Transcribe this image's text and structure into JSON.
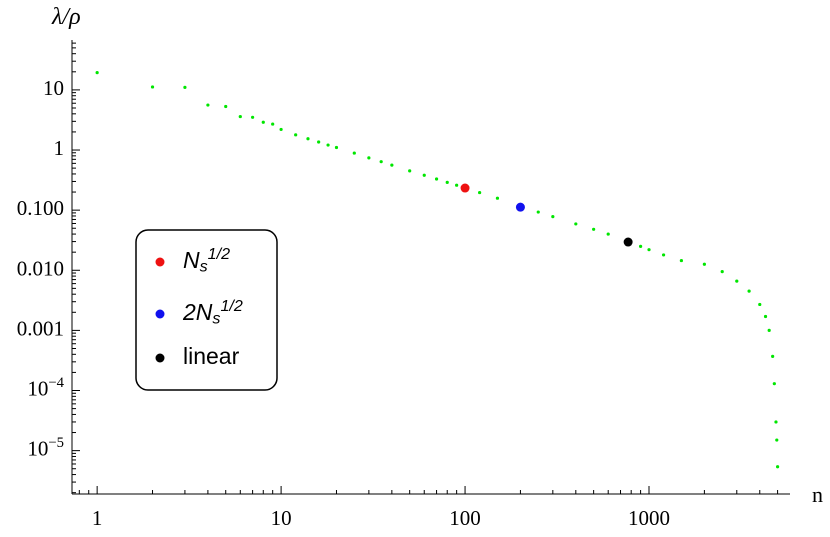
{
  "chart_data": {
    "type": "scatter",
    "x_label": "n",
    "y_label": "λ/ρ",
    "log_x": true,
    "log_y": true,
    "xlim": [
      0.73,
      5840
    ],
    "ylim": [
      1.9e-06,
      67.6
    ],
    "xticks": [
      1,
      10,
      100,
      1000
    ],
    "yticks": [
      10,
      1,
      {
        "value": 0.1,
        "label": "0.100"
      },
      {
        "value": 0.01,
        "label": "0.010"
      },
      {
        "value": 0.001,
        "label": "0.001"
      },
      {
        "value": 0.0001,
        "label": "10^{−4}"
      },
      {
        "value": 1e-05,
        "label": "10^{−5}"
      }
    ],
    "legend_position": "center-left",
    "series": [
      {
        "color": "#00e600",
        "x": [
          1,
          2,
          3,
          4,
          5,
          6,
          7,
          8,
          9,
          10,
          12,
          14,
          16,
          18,
          20,
          25,
          30,
          35,
          40,
          50,
          60,
          70,
          80,
          90,
          100,
          120,
          150,
          200,
          250,
          300,
          400,
          500,
          600,
          770,
          900,
          1000,
          1200,
          1500,
          2000,
          2500,
          3000,
          3500,
          4000,
          4300,
          4500,
          4700,
          4800,
          4900,
          4950,
          5000
        ],
        "values": [
          19.4,
          11.2,
          11,
          5.6,
          5.3,
          3.6,
          3.5,
          2.9,
          2.7,
          2.2,
          1.79,
          1.54,
          1.36,
          1.21,
          1.1,
          0.89,
          0.74,
          0.64,
          0.56,
          0.45,
          0.38,
          0.33,
          0.29,
          0.26,
          0.233,
          0.196,
          0.158,
          0.115,
          0.093,
          0.078,
          0.059,
          0.048,
          0.04,
          0.0295,
          0.025,
          0.022,
          0.018,
          0.0145,
          0.0126,
          0.0095,
          0.0066,
          0.0045,
          0.0027,
          0.0017,
          0.001,
          0.00037,
          0.00013,
          3e-05,
          1.5e-05,
          5.4e-06
        ]
      },
      {
        "name": "N_{s}^{1/2}",
        "color": "#ee1111",
        "x": [
          100
        ],
        "values": [
          0.233
        ]
      },
      {
        "name": "2N_{s}^{1/2}",
        "color": "#1111ee",
        "x": [
          200
        ],
        "values": [
          0.112
        ]
      },
      {
        "name": "linear",
        "color": "#000000",
        "x": [
          770
        ],
        "values": [
          0.0295
        ]
      }
    ]
  }
}
